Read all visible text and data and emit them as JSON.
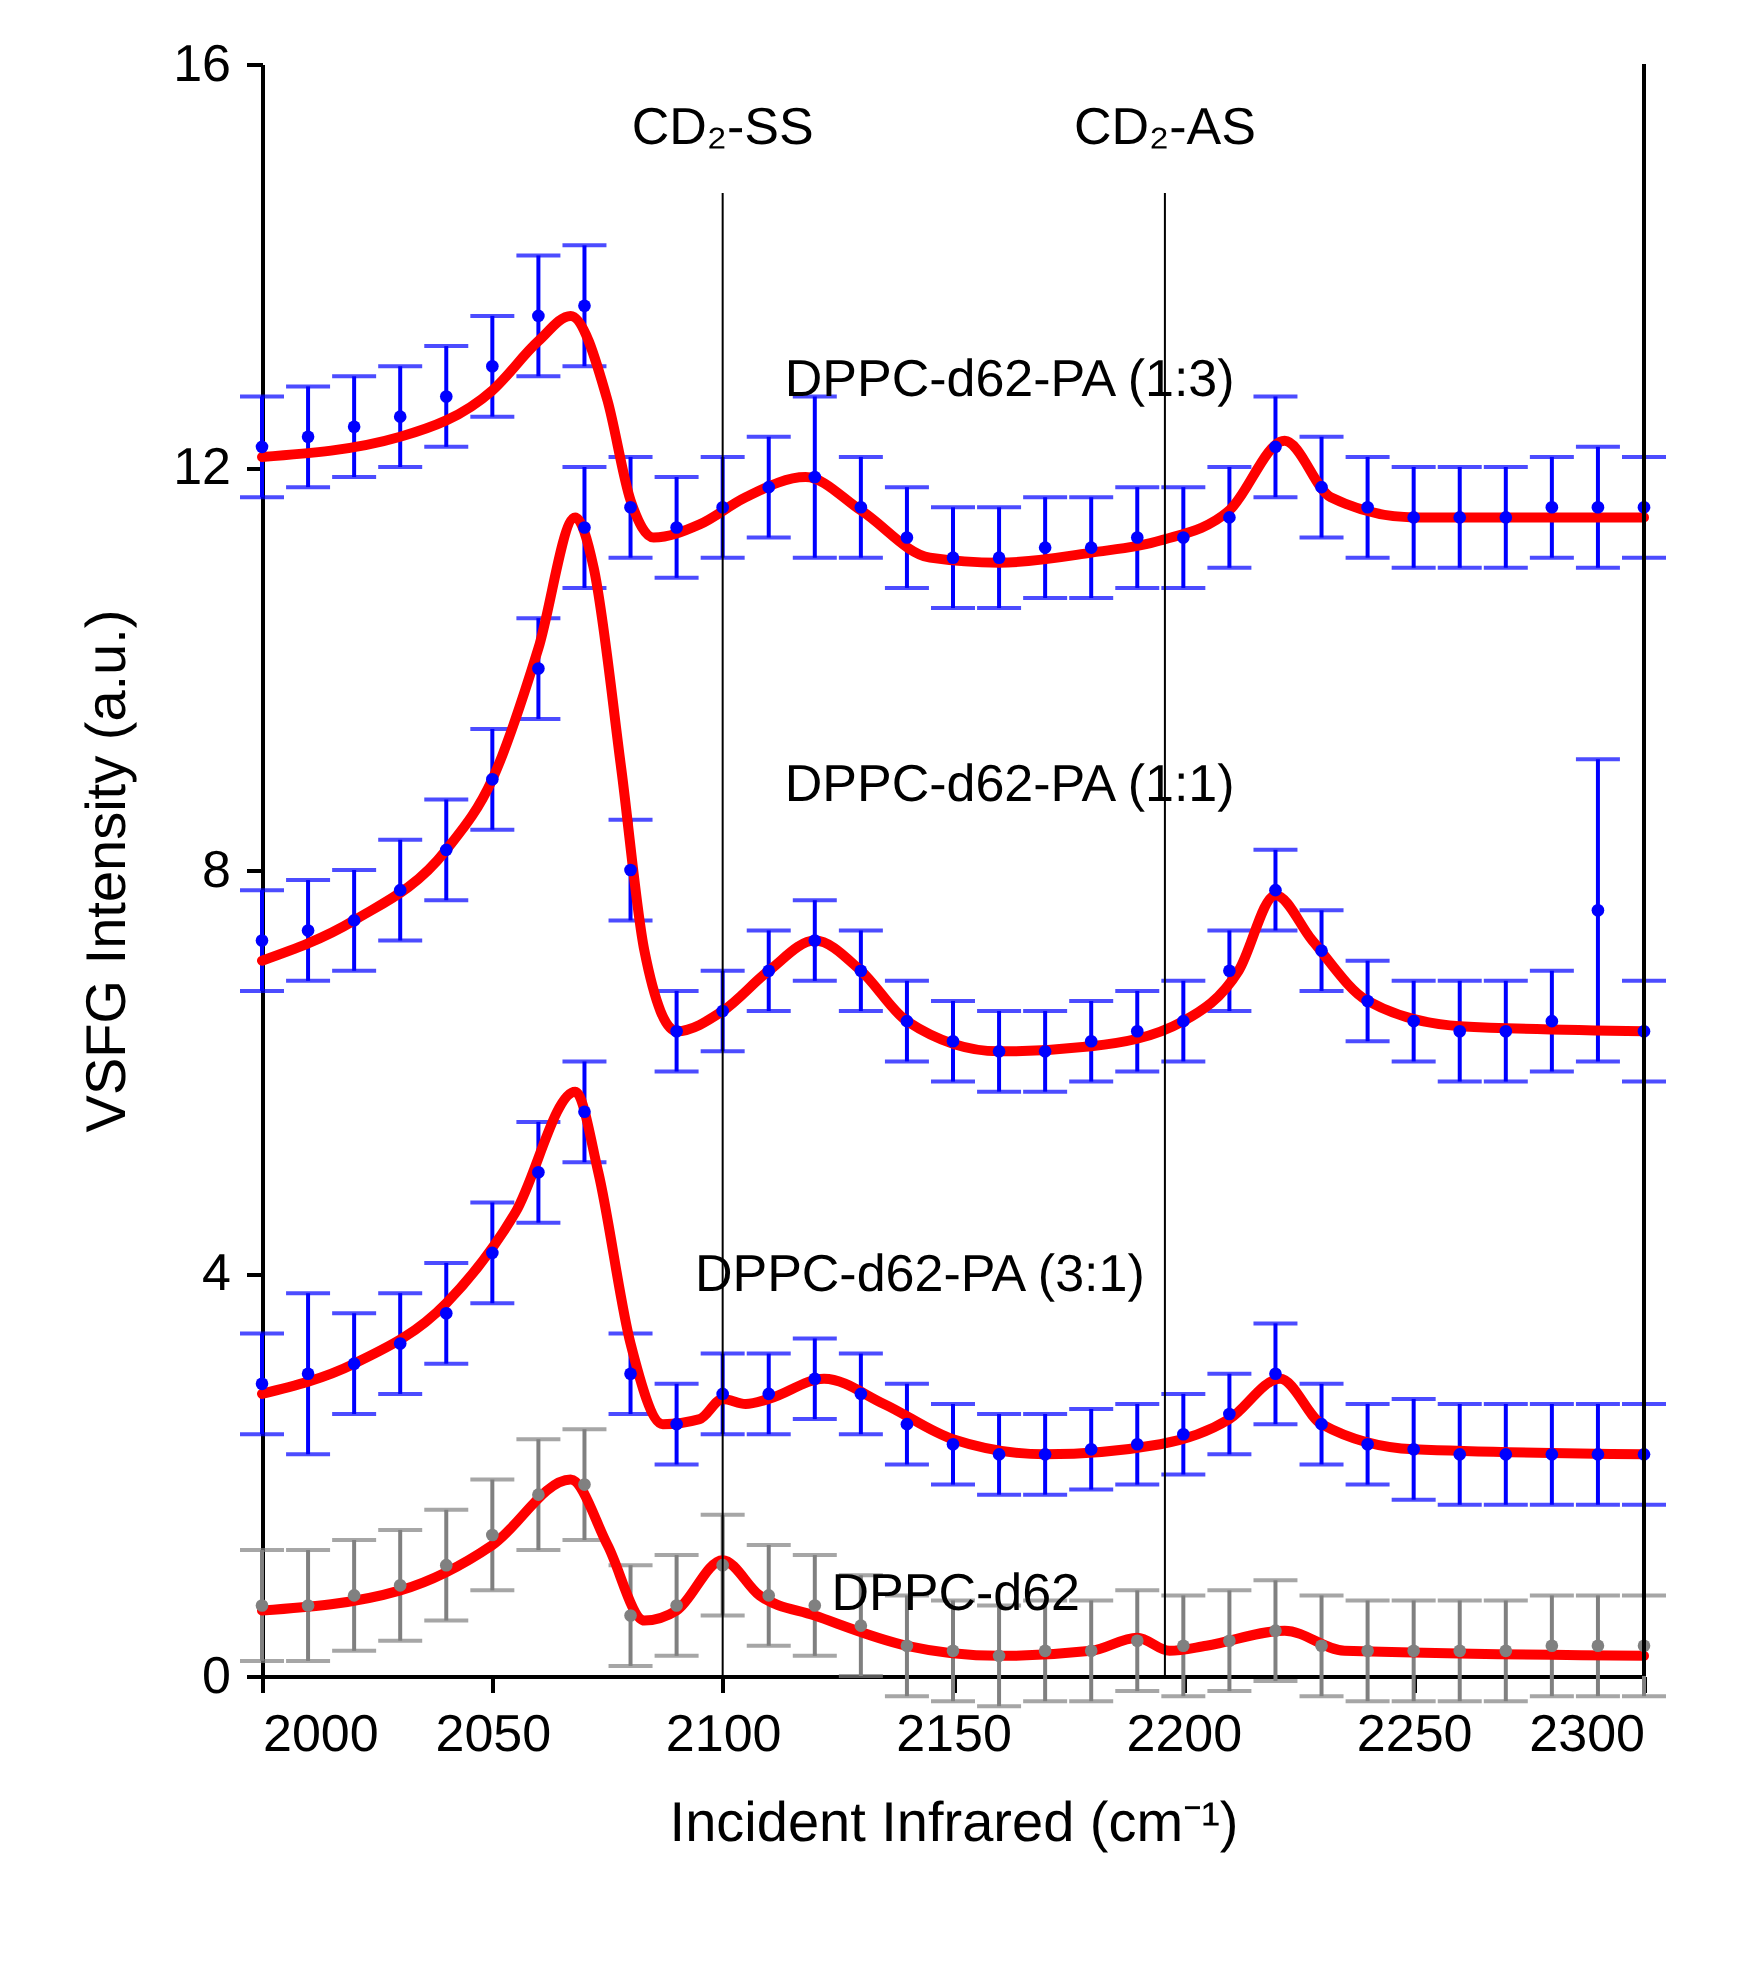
{
  "chart_data": {
    "type": "scatter",
    "xlabel": "Incident Infrared (cm⁻¹)",
    "ylabel": "VSFG Intensity (a.u.)",
    "xlim": [
      2000,
      2300
    ],
    "xticks": [
      2000,
      2050,
      2100,
      2150,
      2200,
      2250,
      2300
    ],
    "ylim": [
      0,
      16
    ],
    "yticks": [
      0,
      4,
      8,
      12,
      16
    ],
    "marker": "circle",
    "ref_lines": [
      {
        "axis": "x",
        "value": 2100,
        "label": "CD₂-SS"
      },
      {
        "axis": "x",
        "value": 2196,
        "label": "CD₂-AS"
      }
    ],
    "annotations": [
      "DPPC-d62-PA (1:3)",
      "DPPC-d62-PA (1:1)",
      "DPPC-d62-PA (3:1)",
      "DPPC-d62"
    ],
    "series": [
      {
        "color": "#0000ff",
        "x": [
          2000,
          2010,
          2020,
          2030,
          2040,
          2050,
          2060,
          2070,
          2080,
          2090,
          2100,
          2110,
          2120,
          2130,
          2140,
          2150,
          2160,
          2170,
          2180,
          2190,
          2200,
          2210,
          2220,
          2230,
          2240,
          2250,
          2260,
          2270,
          2280,
          2290,
          2300
        ],
        "values": [
          12.2,
          12.3,
          12.4,
          12.5,
          12.7,
          13.0,
          13.5,
          13.6,
          11.6,
          11.4,
          11.6,
          11.8,
          11.9,
          11.6,
          11.3,
          11.1,
          11.1,
          11.2,
          11.2,
          11.3,
          11.3,
          11.5,
          12.2,
          11.8,
          11.6,
          11.5,
          11.5,
          11.5,
          11.6,
          11.6,
          11.6
        ],
        "errors": [
          0.5,
          0.5,
          0.5,
          0.5,
          0.5,
          0.5,
          0.6,
          0.6,
          0.5,
          0.5,
          0.5,
          0.5,
          0.8,
          0.5,
          0.5,
          0.5,
          0.5,
          0.5,
          0.5,
          0.5,
          0.5,
          0.5,
          0.5,
          0.5,
          0.5,
          0.5,
          0.5,
          0.5,
          0.5,
          0.6,
          0.5
        ]
      },
      {
        "color": "#0000ff",
        "x": [
          2000,
          2010,
          2020,
          2030,
          2040,
          2050,
          2060,
          2070,
          2080,
          2090,
          2100,
          2110,
          2120,
          2130,
          2140,
          2150,
          2160,
          2170,
          2180,
          2190,
          2200,
          2210,
          2220,
          2230,
          2240,
          2250,
          2260,
          2270,
          2280,
          2290,
          2300
        ],
        "values": [
          7.3,
          7.4,
          7.5,
          7.8,
          8.2,
          8.9,
          10.0,
          11.4,
          8.0,
          6.4,
          6.6,
          7.0,
          7.3,
          7.0,
          6.5,
          6.3,
          6.2,
          6.2,
          6.3,
          6.4,
          6.5,
          7.0,
          7.8,
          7.2,
          6.7,
          6.5,
          6.4,
          6.4,
          6.5,
          7.6,
          6.4
        ],
        "errors": [
          0.5,
          0.5,
          0.5,
          0.5,
          0.5,
          0.5,
          0.5,
          0.6,
          0.5,
          0.4,
          0.4,
          0.4,
          0.4,
          0.4,
          0.4,
          0.4,
          0.4,
          0.4,
          0.4,
          0.4,
          0.4,
          0.4,
          0.4,
          0.4,
          0.4,
          0.4,
          0.5,
          0.5,
          0.5,
          1.5,
          0.5
        ]
      },
      {
        "color": "#0000ff",
        "x": [
          2000,
          2010,
          2020,
          2030,
          2040,
          2050,
          2060,
          2070,
          2080,
          2090,
          2100,
          2110,
          2120,
          2130,
          2140,
          2150,
          2160,
          2170,
          2180,
          2190,
          2200,
          2210,
          2220,
          2230,
          2240,
          2250,
          2260,
          2270,
          2280,
          2290,
          2300
        ],
        "values": [
          2.9,
          3.0,
          3.1,
          3.3,
          3.6,
          4.2,
          5.0,
          5.6,
          3.0,
          2.5,
          2.8,
          2.8,
          2.95,
          2.8,
          2.5,
          2.3,
          2.2,
          2.2,
          2.25,
          2.3,
          2.4,
          2.6,
          3.0,
          2.5,
          2.3,
          2.25,
          2.2,
          2.2,
          2.2,
          2.2,
          2.2
        ],
        "errors": [
          0.5,
          0.8,
          0.5,
          0.5,
          0.5,
          0.5,
          0.5,
          0.5,
          0.4,
          0.4,
          0.4,
          0.4,
          0.4,
          0.4,
          0.4,
          0.4,
          0.4,
          0.4,
          0.4,
          0.4,
          0.4,
          0.4,
          0.5,
          0.4,
          0.4,
          0.5,
          0.5,
          0.5,
          0.5,
          0.5,
          0.5
        ]
      },
      {
        "color": "#808080",
        "x": [
          2000,
          2010,
          2020,
          2030,
          2040,
          2050,
          2060,
          2070,
          2080,
          2090,
          2100,
          2110,
          2120,
          2130,
          2140,
          2150,
          2160,
          2170,
          2180,
          2190,
          2200,
          2210,
          2220,
          2230,
          2240,
          2250,
          2260,
          2270,
          2280,
          2290,
          2300
        ],
        "values": [
          0.7,
          0.7,
          0.8,
          0.9,
          1.1,
          1.4,
          1.8,
          1.9,
          0.6,
          0.7,
          1.1,
          0.8,
          0.7,
          0.5,
          0.3,
          0.25,
          0.2,
          0.25,
          0.25,
          0.35,
          0.3,
          0.35,
          0.45,
          0.3,
          0.25,
          0.25,
          0.25,
          0.25,
          0.3,
          0.3,
          0.3
        ],
        "errors": [
          0.55,
          0.55,
          0.55,
          0.55,
          0.55,
          0.55,
          0.55,
          0.55,
          0.5,
          0.5,
          0.5,
          0.5,
          0.5,
          0.5,
          0.5,
          0.5,
          0.5,
          0.5,
          0.5,
          0.5,
          0.5,
          0.5,
          0.5,
          0.5,
          0.5,
          0.5,
          0.5,
          0.5,
          0.5,
          0.5,
          0.5
        ]
      },
      {
        "type": "line",
        "marker": "none",
        "color": "#ff0000",
        "x": [
          2000,
          2030,
          2050,
          2060,
          2067,
          2075,
          2080,
          2085,
          2095,
          2105,
          2118,
          2130,
          2145,
          2160,
          2180,
          2195,
          2210,
          2222,
          2232,
          2250,
          2300
        ],
        "values": [
          12.1,
          12.3,
          12.76,
          13.25,
          13.5,
          12.66,
          11.67,
          11.3,
          11.43,
          11.7,
          11.9,
          11.57,
          11.1,
          11.05,
          11.15,
          11.27,
          11.57,
          12.26,
          11.7,
          11.5,
          11.5
        ]
      },
      {
        "type": "line",
        "marker": "none",
        "color": "#ff0000",
        "x": [
          2000,
          2020,
          2040,
          2050,
          2060,
          2068,
          2072,
          2078,
          2083,
          2090,
          2100,
          2110,
          2120,
          2130,
          2140,
          2160,
          2180,
          2200,
          2212,
          2220,
          2228,
          2240,
          2260,
          2300
        ],
        "values": [
          7.1,
          7.5,
          8.2,
          8.9,
          10.2,
          11.5,
          11.0,
          9.0,
          7.2,
          6.4,
          6.6,
          7.0,
          7.3,
          7.0,
          6.5,
          6.2,
          6.25,
          6.5,
          7.0,
          7.75,
          7.3,
          6.7,
          6.45,
          6.4
        ]
      },
      {
        "type": "line",
        "marker": "none",
        "color": "#ff0000",
        "x": [
          2000,
          2020,
          2040,
          2055,
          2068,
          2073,
          2080,
          2087,
          2095,
          2100,
          2105,
          2110,
          2122,
          2135,
          2150,
          2170,
          2195,
          2210,
          2221,
          2230,
          2250,
          2300
        ],
        "values": [
          2.8,
          3.1,
          3.7,
          4.6,
          5.8,
          5.0,
          3.3,
          2.5,
          2.55,
          2.75,
          2.7,
          2.75,
          2.95,
          2.7,
          2.35,
          2.2,
          2.3,
          2.55,
          2.95,
          2.5,
          2.25,
          2.2
        ]
      },
      {
        "type": "line",
        "marker": "none",
        "color": "#ff0000",
        "x": [
          2000,
          2030,
          2050,
          2067,
          2075,
          2083,
          2090,
          2100,
          2108,
          2120,
          2140,
          2160,
          2180,
          2190,
          2197,
          2205,
          2222,
          2235,
          2300
        ],
        "values": [
          0.65,
          0.85,
          1.3,
          1.95,
          1.3,
          0.55,
          0.65,
          1.15,
          0.8,
          0.6,
          0.3,
          0.2,
          0.25,
          0.38,
          0.25,
          0.3,
          0.45,
          0.25,
          0.2
        ]
      }
    ]
  }
}
